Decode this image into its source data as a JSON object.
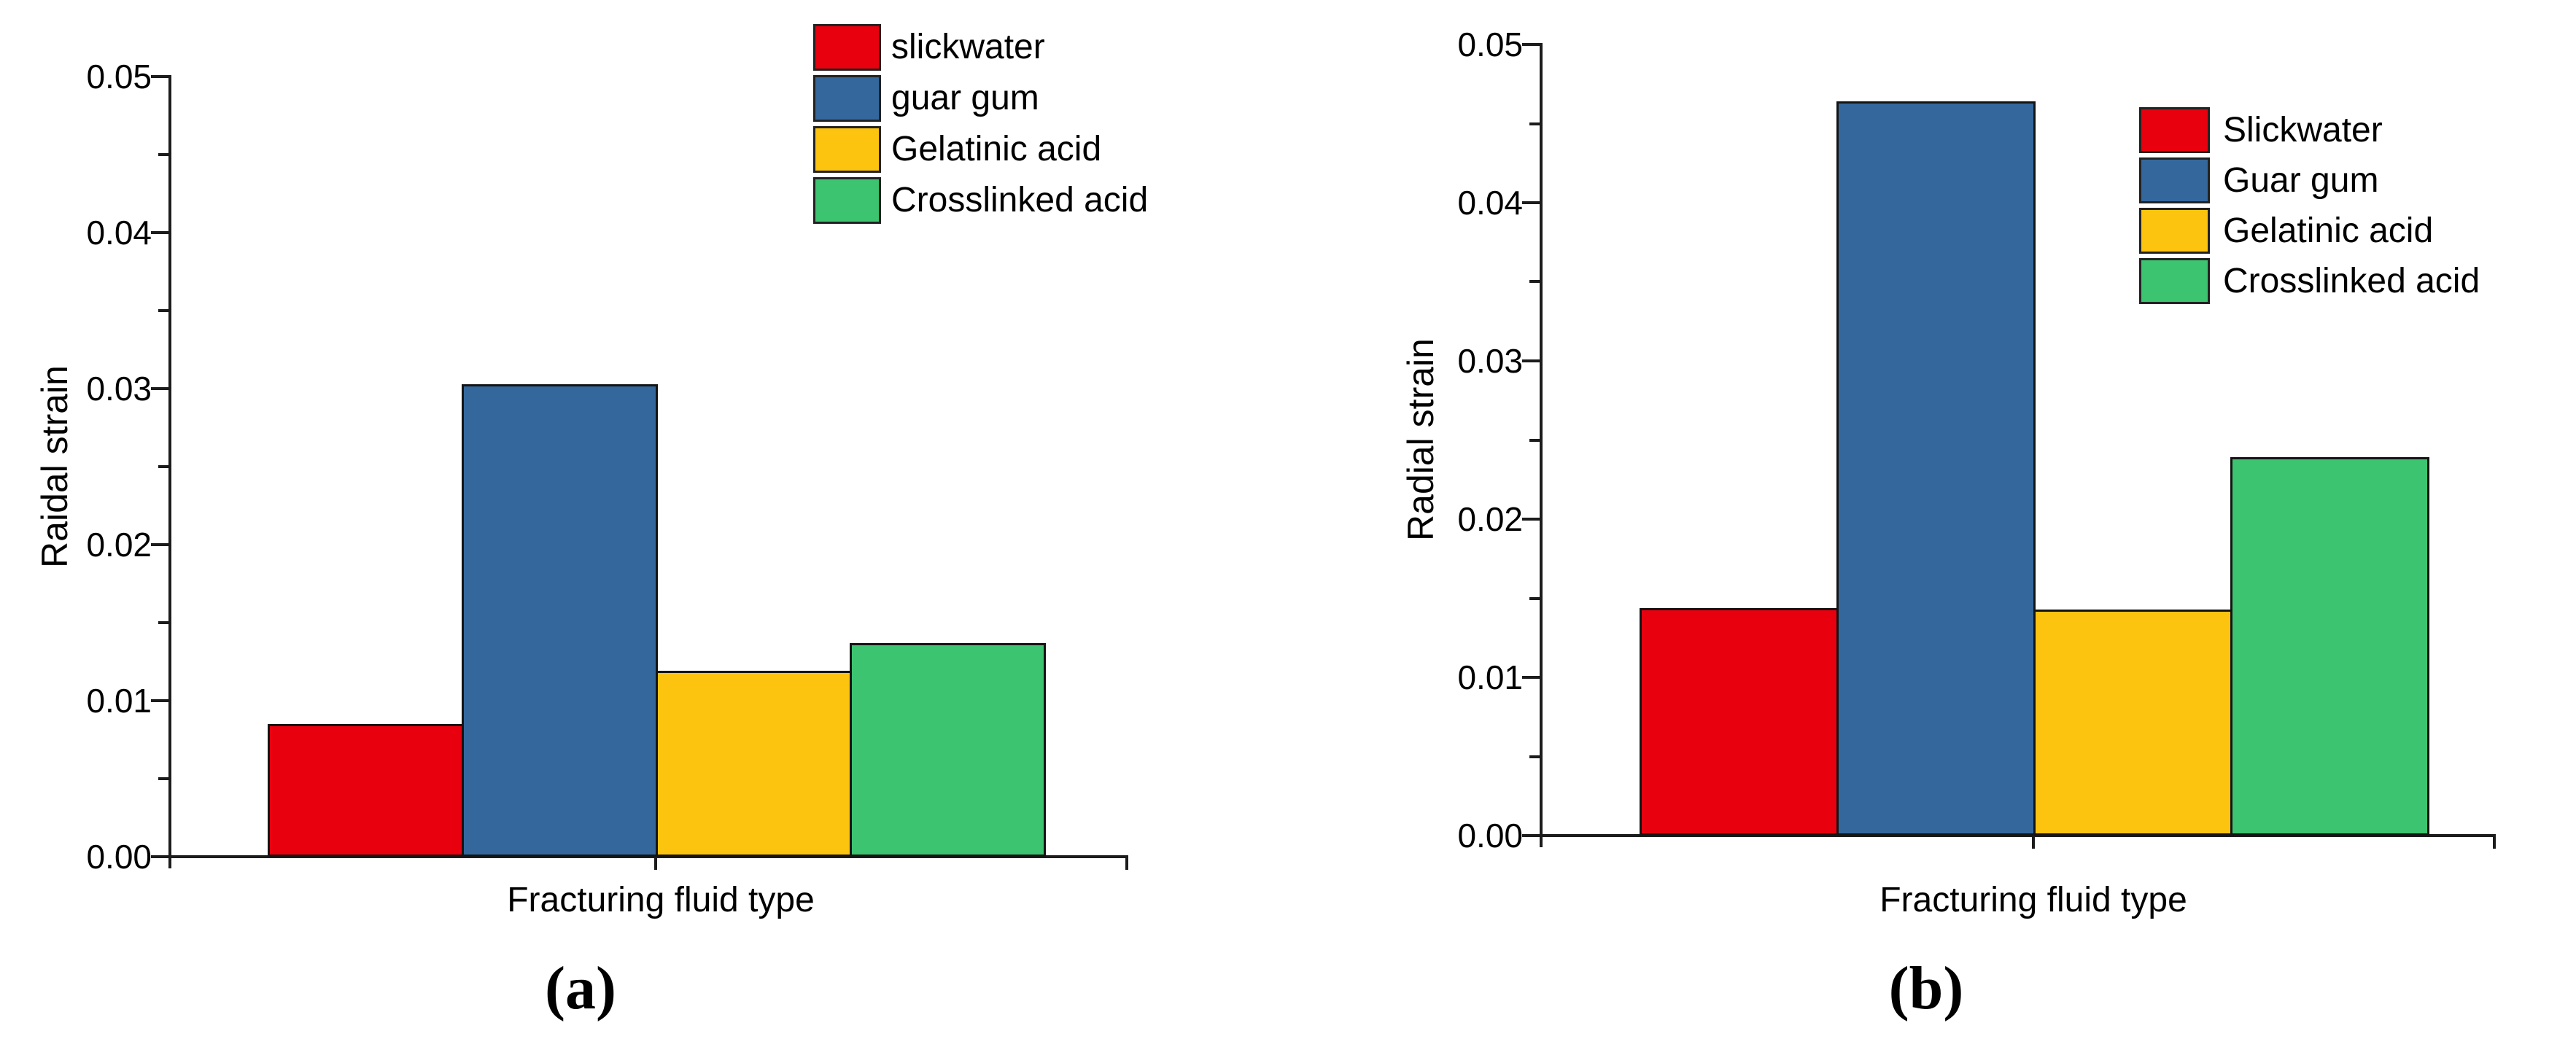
{
  "figure": {
    "background": "#ffffff"
  },
  "chart_data": [
    {
      "type": "bar",
      "panel": "a",
      "caption": "(a)",
      "xlabel": "Fracturing fluid type",
      "ylabel": "Raidal strain",
      "categories": [
        "slickwater",
        "guar gum",
        "Gelatinic acid",
        "Crosslinked acid"
      ],
      "values": [
        0.0085,
        0.0303,
        0.0119,
        0.0137
      ],
      "bar_colors": [
        "#e8000f",
        "#34689d",
        "#fdc40f",
        "#3cc470"
      ],
      "legend": [
        {
          "label": "slickwater",
          "color": "#e8000f"
        },
        {
          "label": "guar gum",
          "color": "#34689d"
        },
        {
          "label": "Gelatinic acid",
          "color": "#fdc40f"
        },
        {
          "label": "Crosslinked acid",
          "color": "#3cc470"
        }
      ],
      "ylim": [
        0,
        0.05
      ],
      "ytick_step": 0.01,
      "ytick_labels": [
        "0.00",
        "0.01",
        "0.02",
        "0.03",
        "0.04",
        "0.05"
      ],
      "grid": false,
      "legend_position": "top-right-inside"
    },
    {
      "type": "bar",
      "panel": "b",
      "caption": "(b)",
      "xlabel": "Fracturing fluid type",
      "ylabel": "Radial strain",
      "categories": [
        "Slickwater",
        "Guar gum",
        "Gelatinic acid",
        "Crosslinked acid"
      ],
      "values": [
        0.0144,
        0.0464,
        0.0143,
        0.0239
      ],
      "bar_colors": [
        "#e8000f",
        "#34689d",
        "#fdc40f",
        "#3cc470"
      ],
      "legend": [
        {
          "label": "Slickwater",
          "color": "#e8000f"
        },
        {
          "label": "Guar gum",
          "color": "#34689d"
        },
        {
          "label": "Gelatinic acid",
          "color": "#fdc40f"
        },
        {
          "label": "Crosslinked acid",
          "color": "#3cc470"
        }
      ],
      "ylim": [
        0,
        0.05
      ],
      "ytick_step": 0.01,
      "ytick_labels": [
        "0.00",
        "0.01",
        "0.02",
        "0.03",
        "0.04",
        "0.05"
      ],
      "grid": false,
      "legend_position": "top-right-inside"
    }
  ]
}
